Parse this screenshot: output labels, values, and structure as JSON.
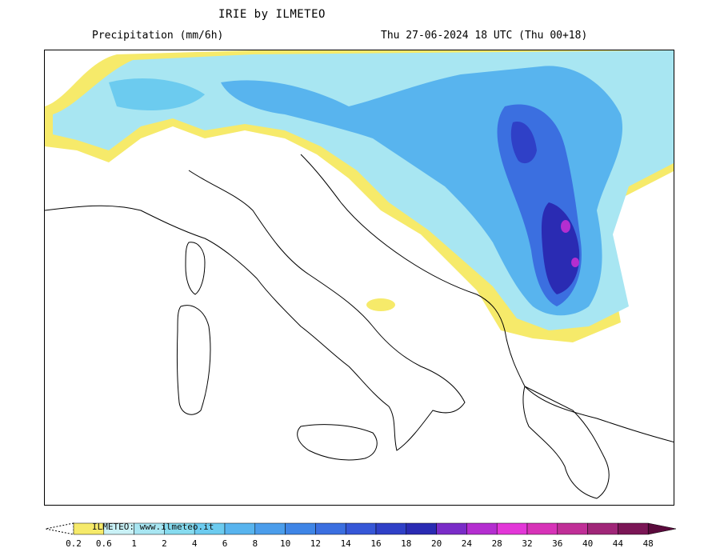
{
  "header": {
    "title": "IRIE by ILMETEO",
    "variable": "Precipitation (mm/6h)",
    "valid_time": "Thu 27-06-2024 18 UTC (Thu 00+18)"
  },
  "legend": {
    "credit": "ILMETEO: www.ilmeteo.it",
    "ticks": [
      "0.2",
      "0.6",
      "1",
      "2",
      "4",
      "6",
      "8",
      "10",
      "12",
      "14",
      "16",
      "18",
      "20",
      "24",
      "28",
      "32",
      "36",
      "40",
      "44",
      "48"
    ],
    "colors": [
      "#f6ea6a",
      "#c9f1f6",
      "#a8e6f2",
      "#86dbef",
      "#6ccbef",
      "#58b4ee",
      "#4b9deb",
      "#3f85e6",
      "#3b6fe0",
      "#3657d7",
      "#2f40c7",
      "#2a2bb3",
      "#7a2cc8",
      "#b42ed0",
      "#e337d8",
      "#d733b8",
      "#c02f97",
      "#a02678",
      "#7b1656"
    ]
  },
  "map": {
    "region": "Italy and the Balkans",
    "colors": {
      "light": "#a8e6f2",
      "mid": "#58b4ee",
      "strong": "#3b6fe0",
      "heavy": "#2a2bb3",
      "extreme": "#b42ed0",
      "drizzle": "#f6ea6a"
    }
  }
}
